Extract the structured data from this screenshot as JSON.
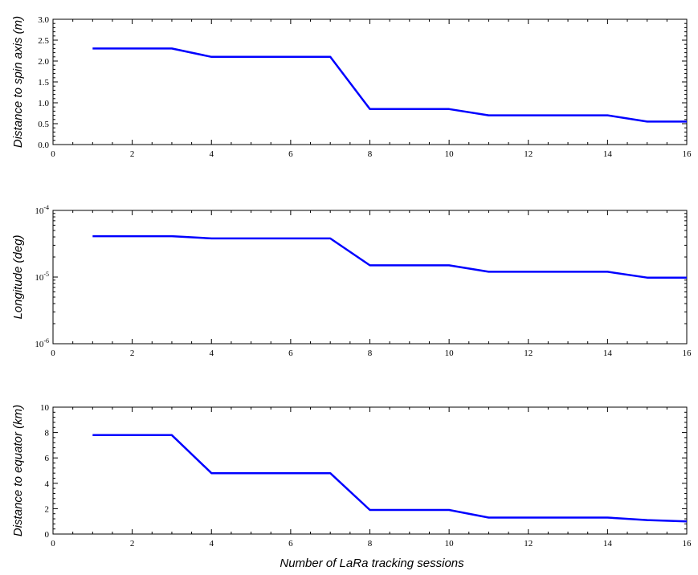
{
  "chart_data": [
    {
      "type": "line",
      "ylabel": "Distance to spin axis (m)",
      "xlabel": "",
      "xlim": [
        0,
        16
      ],
      "ylim": [
        0,
        3.0
      ],
      "yscale": "linear",
      "xticks": [
        "0",
        "2",
        "4",
        "6",
        "8",
        "10",
        "12",
        "14",
        "16"
      ],
      "yticks": [
        "0.0",
        "0.5",
        "1.0",
        "1.5",
        "2.0",
        "2.5",
        "3.0"
      ],
      "series": [
        {
          "color": "#0000ff",
          "x": [
            1,
            3,
            4,
            7,
            8,
            10,
            11,
            14,
            15,
            16
          ],
          "y": [
            2.3,
            2.3,
            2.1,
            2.1,
            0.85,
            0.85,
            0.7,
            0.7,
            0.55,
            0.55
          ]
        }
      ]
    },
    {
      "type": "line",
      "ylabel": "Longitude (deg)",
      "xlabel": "",
      "xlim": [
        0,
        16
      ],
      "ylim": [
        1e-06,
        0.0001
      ],
      "yscale": "log",
      "xticks": [
        "0",
        "2",
        "4",
        "6",
        "8",
        "10",
        "12",
        "14",
        "16"
      ],
      "yticks": [
        {
          "base": "10",
          "exp": "-6",
          "value": 1e-06
        },
        {
          "base": "10",
          "exp": "-5",
          "value": 1e-05
        },
        {
          "base": "10",
          "exp": "-4",
          "value": 0.0001
        }
      ],
      "series": [
        {
          "color": "#0000ff",
          "x": [
            1,
            3,
            4,
            7,
            8,
            10,
            11,
            14,
            15,
            16
          ],
          "y": [
            4.1e-05,
            4.1e-05,
            3.8e-05,
            3.8e-05,
            1.5e-05,
            1.5e-05,
            1.2e-05,
            1.2e-05,
            9.8e-06,
            9.8e-06
          ]
        }
      ]
    },
    {
      "type": "line",
      "ylabel": "Distance to equator (km)",
      "xlabel": "Number of LaRa tracking sessions",
      "xlim": [
        0,
        16
      ],
      "ylim": [
        0,
        10
      ],
      "yscale": "linear",
      "xticks": [
        "0",
        "2",
        "4",
        "6",
        "8",
        "10",
        "12",
        "14",
        "16"
      ],
      "yticks": [
        "0",
        "2",
        "4",
        "6",
        "8",
        "10"
      ],
      "series": [
        {
          "color": "#0000ff",
          "x": [
            1,
            3,
            4,
            7,
            8,
            10,
            11,
            14,
            15,
            16
          ],
          "y": [
            7.8,
            7.8,
            4.8,
            4.8,
            1.9,
            1.9,
            1.3,
            1.3,
            1.1,
            1.0
          ]
        }
      ]
    }
  ]
}
